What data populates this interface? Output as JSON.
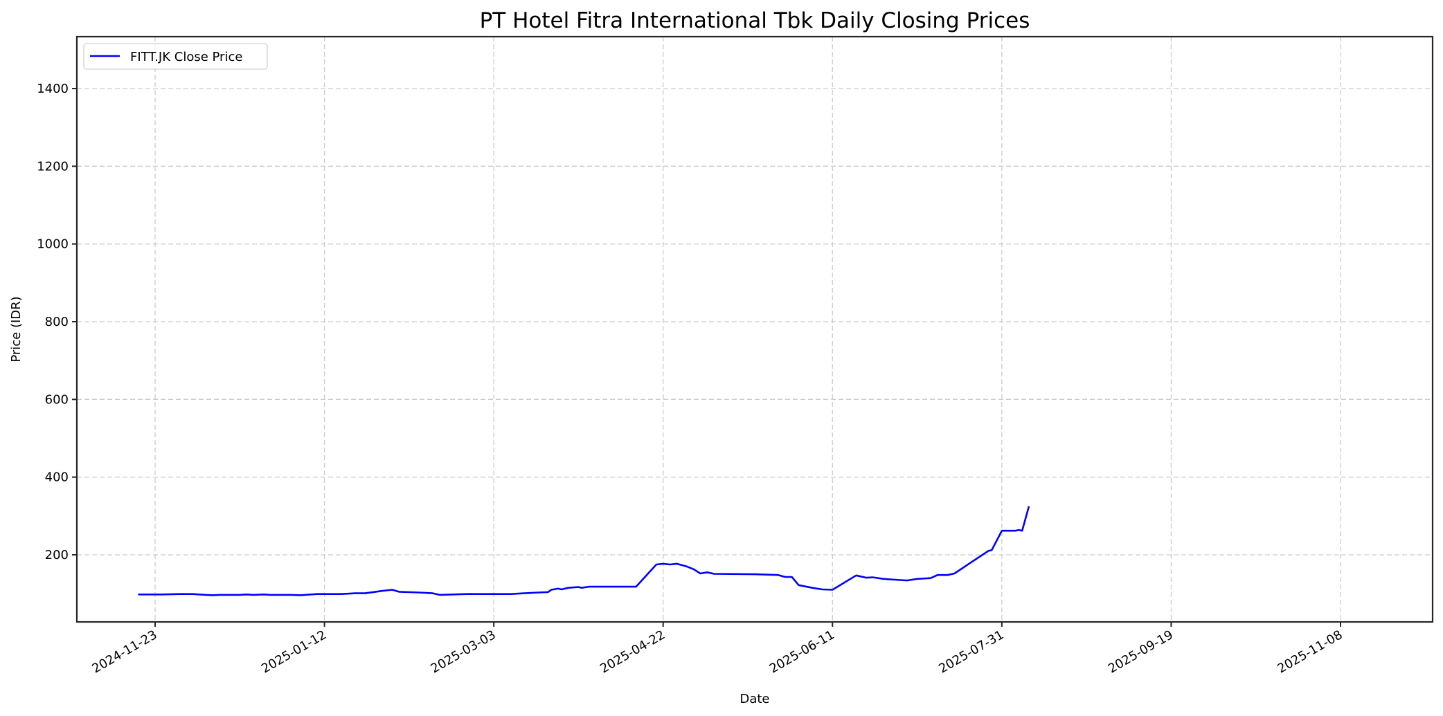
{
  "chart_data": {
    "type": "line",
    "title": "PT Hotel Fitra International Tbk Daily Closing Prices",
    "xlabel": "Date",
    "ylabel": "Price (IDR)",
    "x_ticks": [
      "2024-11-23",
      "2025-01-12",
      "2025-03-03",
      "2025-04-22",
      "2025-06-11",
      "2025-07-31",
      "2025-09-19",
      "2025-11-08"
    ],
    "y_ticks": [
      200,
      400,
      600,
      800,
      1000,
      1200,
      1400
    ],
    "xlim": [
      "2024-11-06",
      "2025-11-29"
    ],
    "ylim": [
      25,
      1535
    ],
    "grid": true,
    "legend_position": "upper left",
    "series": [
      {
        "name": "FITT.JK Close Price",
        "color": "#0000ff",
        "points": [
          [
            "2024-11-18",
            98
          ],
          [
            "2024-11-25",
            98
          ],
          [
            "2024-11-30",
            99
          ],
          [
            "2024-12-04",
            99
          ],
          [
            "2024-12-08",
            97
          ],
          [
            "2024-12-10",
            96
          ],
          [
            "2024-12-12",
            97
          ],
          [
            "2024-12-18",
            97
          ],
          [
            "2024-12-20",
            98
          ],
          [
            "2024-12-22",
            97
          ],
          [
            "2024-12-25",
            98
          ],
          [
            "2024-12-27",
            97
          ],
          [
            "2025-01-02",
            97
          ],
          [
            "2025-01-05",
            96
          ],
          [
            "2025-01-08",
            98
          ],
          [
            "2025-01-10",
            99
          ],
          [
            "2025-01-12",
            99
          ],
          [
            "2025-01-17",
            99
          ],
          [
            "2025-01-21",
            101
          ],
          [
            "2025-01-24",
            101
          ],
          [
            "2025-01-29",
            107
          ],
          [
            "2025-02-01",
            110
          ],
          [
            "2025-02-03",
            105
          ],
          [
            "2025-02-09",
            103
          ],
          [
            "2025-02-13",
            101
          ],
          [
            "2025-02-15",
            97
          ],
          [
            "2025-02-19",
            98
          ],
          [
            "2025-02-23",
            99
          ],
          [
            "2025-02-27",
            99
          ],
          [
            "2025-03-03",
            99
          ],
          [
            "2025-03-08",
            99
          ],
          [
            "2025-03-12",
            101
          ],
          [
            "2025-03-16",
            103
          ],
          [
            "2025-03-19",
            104
          ],
          [
            "2025-03-20",
            110
          ],
          [
            "2025-03-22",
            113
          ],
          [
            "2025-03-23",
            111
          ],
          [
            "2025-03-25",
            115
          ],
          [
            "2025-03-28",
            117
          ],
          [
            "2025-03-29",
            115
          ],
          [
            "2025-03-31",
            118
          ],
          [
            "2025-04-03",
            118
          ],
          [
            "2025-04-08",
            118
          ],
          [
            "2025-04-14",
            118
          ],
          [
            "2025-04-20",
            175
          ],
          [
            "2025-04-22",
            177
          ],
          [
            "2025-04-24",
            175
          ],
          [
            "2025-04-26",
            177
          ],
          [
            "2025-04-29",
            170
          ],
          [
            "2025-05-01",
            163
          ],
          [
            "2025-05-03",
            152
          ],
          [
            "2025-05-05",
            155
          ],
          [
            "2025-05-07",
            151
          ],
          [
            "2025-05-19",
            150
          ],
          [
            "2025-05-26",
            148
          ],
          [
            "2025-05-28",
            143
          ],
          [
            "2025-05-30",
            143
          ],
          [
            "2025-06-01",
            122
          ],
          [
            "2025-06-05",
            115
          ],
          [
            "2025-06-08",
            111
          ],
          [
            "2025-06-11",
            110
          ],
          [
            "2025-06-18",
            147
          ],
          [
            "2025-06-21",
            141
          ],
          [
            "2025-06-23",
            142
          ],
          [
            "2025-06-26",
            138
          ],
          [
            "2025-07-01",
            135
          ],
          [
            "2025-07-03",
            134
          ],
          [
            "2025-07-06",
            138
          ],
          [
            "2025-07-10",
            140
          ],
          [
            "2025-07-12",
            148
          ],
          [
            "2025-07-15",
            148
          ],
          [
            "2025-07-17",
            152
          ],
          [
            "2025-07-27",
            210
          ],
          [
            "2025-07-28",
            212
          ],
          [
            "2025-07-31",
            262
          ],
          [
            "2025-08-04",
            262
          ],
          [
            "2025-08-05",
            264
          ],
          [
            "2025-08-06",
            262
          ],
          [
            "2025-08-08",
            325
          ]
        ]
      }
    ]
  },
  "legend": {
    "label": "FITT.JK Close Price"
  }
}
